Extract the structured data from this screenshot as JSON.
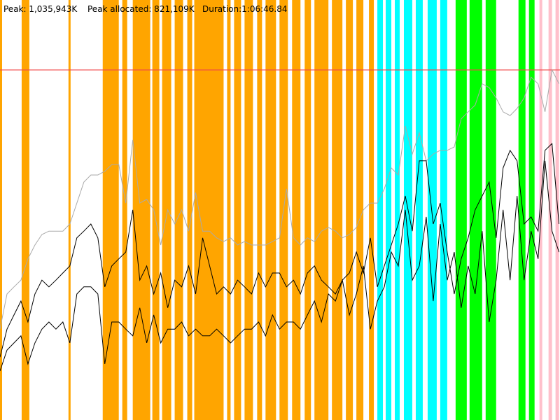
{
  "chart_data": {
    "type": "line",
    "labels": [
      "Peak: 1,035,943K",
      "Peak allocated: 821,109K",
      "Duration:1:06:46.84"
    ],
    "peak": 1035943,
    "peak_color": "#f04848",
    "xlim": [
      0,
      4007
    ],
    "ylim": [
      0,
      1243000
    ],
    "bands": [
      {
        "color": "#ffa500",
        "x": [
          [
            0,
            15
          ],
          [
            155,
            210
          ],
          [
            490,
            505
          ],
          [
            735,
            850
          ],
          [
            875,
            910
          ],
          [
            950,
            1075
          ],
          [
            1090,
            1140
          ],
          [
            1160,
            1225
          ],
          [
            1250,
            1310
          ],
          [
            1340,
            1375
          ],
          [
            1390,
            1600
          ],
          [
            1625,
            1650
          ],
          [
            1675,
            1725
          ],
          [
            1750,
            1810
          ],
          [
            1840,
            1875
          ],
          [
            1900,
            1975
          ],
          [
            2000,
            2060
          ],
          [
            2090,
            2150
          ],
          [
            2180,
            2225
          ],
          [
            2250,
            2350
          ],
          [
            2375,
            2450
          ],
          [
            2475,
            2525
          ],
          [
            2550,
            2600
          ],
          [
            2640,
            2675
          ]
        ]
      },
      {
        "color": "#00ffff",
        "x": [
          [
            2700,
            2740
          ],
          [
            2760,
            2800
          ],
          [
            2825,
            2860
          ],
          [
            2890,
            2950
          ],
          [
            2975,
            3025
          ],
          [
            3060,
            3125
          ],
          [
            3150,
            3200
          ]
        ]
      },
      {
        "color": "#00ff00",
        "x": [
          [
            3260,
            3340
          ],
          [
            3360,
            3450
          ],
          [
            3475,
            3550
          ],
          [
            3710,
            3760
          ],
          [
            3785,
            3825
          ]
        ]
      },
      {
        "color": "#ffc0cb",
        "x": [
          [
            3860,
            3880
          ],
          [
            3925,
            3950
          ],
          [
            3975,
            4000
          ]
        ]
      }
    ],
    "x": [
      0,
      50,
      100,
      150,
      200,
      250,
      300,
      350,
      400,
      450,
      500,
      550,
      600,
      650,
      700,
      750,
      800,
      850,
      900,
      950,
      1000,
      1050,
      1100,
      1150,
      1200,
      1250,
      1300,
      1350,
      1400,
      1450,
      1500,
      1550,
      1600,
      1650,
      1700,
      1750,
      1800,
      1850,
      1900,
      1950,
      2000,
      2050,
      2100,
      2150,
      2200,
      2250,
      2300,
      2350,
      2400,
      2450,
      2500,
      2550,
      2600,
      2650,
      2700,
      2750,
      2800,
      2850,
      2900,
      2950,
      3000,
      3050,
      3100,
      3150,
      3200,
      3250,
      3300,
      3350,
      3400,
      3450,
      3500,
      3550,
      3600,
      3650,
      3700,
      3750,
      3800,
      3850,
      3900,
      3950,
      4000
    ],
    "series": [
      {
        "color": "#aaaaaa",
        "values": [
          269000,
          373000,
          394000,
          414000,
          477000,
          518000,
          549000,
          559000,
          559000,
          559000,
          580000,
          642000,
          704000,
          725000,
          725000,
          736000,
          756000,
          756000,
          642000,
          829000,
          642000,
          653000,
          622000,
          518000,
          622000,
          580000,
          622000,
          559000,
          673000,
          559000,
          559000,
          539000,
          528000,
          539000,
          518000,
          528000,
          518000,
          518000,
          518000,
          528000,
          539000,
          684000,
          539000,
          518000,
          539000,
          528000,
          559000,
          570000,
          559000,
          539000,
          549000,
          570000,
          622000,
          642000,
          642000,
          684000,
          746000,
          725000,
          870000,
          787000,
          850000,
          767000,
          787000,
          798000,
          798000,
          808000,
          891000,
          912000,
          932000,
          995000,
          984000,
          953000,
          912000,
          901000,
          922000,
          953000,
          1015000,
          995000,
          912000,
          1036000,
          995000
        ]
      },
      {
        "color": "#000000",
        "values": [
          186000,
          269000,
          311000,
          352000,
          290000,
          373000,
          414000,
          394000,
          414000,
          435000,
          456000,
          539000,
          559000,
          580000,
          539000,
          394000,
          456000,
          477000,
          497000,
          622000,
          414000,
          456000,
          373000,
          435000,
          332000,
          414000,
          394000,
          456000,
          373000,
          539000,
          456000,
          373000,
          394000,
          373000,
          414000,
          394000,
          373000,
          435000,
          394000,
          435000,
          435000,
          394000,
          414000,
          373000,
          435000,
          456000,
          414000,
          394000,
          373000,
          414000,
          435000,
          497000,
          435000,
          539000,
          394000,
          456000,
          518000,
          580000,
          663000,
          559000,
          767000,
          767000,
          580000,
          642000,
          497000,
          373000,
          477000,
          539000,
          622000,
          663000,
          704000,
          539000,
          746000,
          798000,
          767000,
          580000,
          601000,
          559000,
          798000,
          818000,
          580000
        ]
      },
      {
        "color": "#000000",
        "values": [
          145000,
          207000,
          228000,
          249000,
          166000,
          228000,
          269000,
          290000,
          269000,
          290000,
          228000,
          373000,
          394000,
          394000,
          373000,
          166000,
          290000,
          290000,
          269000,
          249000,
          332000,
          228000,
          311000,
          228000,
          269000,
          269000,
          290000,
          249000,
          269000,
          249000,
          249000,
          269000,
          249000,
          228000,
          249000,
          269000,
          269000,
          290000,
          249000,
          311000,
          269000,
          290000,
          290000,
          269000,
          311000,
          352000,
          290000,
          373000,
          352000,
          414000,
          311000,
          373000,
          456000,
          269000,
          352000,
          394000,
          497000,
          456000,
          622000,
          414000,
          456000,
          601000,
          352000,
          580000,
          414000,
          497000,
          332000,
          456000,
          373000,
          559000,
          290000,
          414000,
          622000,
          414000,
          663000,
          414000,
          559000,
          477000,
          767000,
          559000,
          497000
        ]
      }
    ]
  }
}
